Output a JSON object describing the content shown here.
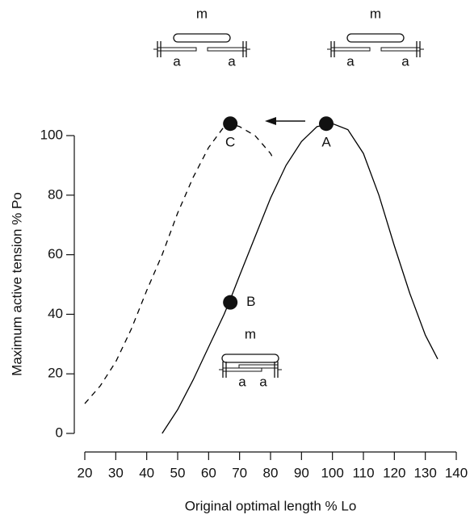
{
  "chart_data": {
    "type": "line",
    "xlabel": "Original optimal length % Lo",
    "ylabel": "Maximum active tension % Po",
    "xlim": [
      20,
      140
    ],
    "xticks": [
      20,
      30,
      40,
      50,
      60,
      70,
      80,
      90,
      100,
      110,
      120,
      130,
      140
    ],
    "ylim": [
      0,
      100
    ],
    "yticks": [
      0,
      20,
      40,
      60,
      80,
      100
    ],
    "series": [
      {
        "color": "#000000",
        "dashed": false,
        "x": [
          45,
          50,
          55,
          60,
          65,
          67,
          70,
          75,
          80,
          85,
          90,
          95,
          100,
          105,
          110,
          115,
          120,
          125,
          130,
          134
        ],
        "values": [
          0,
          8,
          18,
          29,
          40,
          45,
          53,
          66,
          79,
          90,
          98,
          103,
          104,
          102,
          94,
          80,
          63,
          47,
          33,
          25
        ]
      },
      {
        "color": "#000000",
        "dashed": true,
        "x": [
          20,
          25,
          30,
          35,
          40,
          45,
          50,
          55,
          60,
          65,
          67,
          70,
          75,
          80,
          81
        ],
        "values": [
          10,
          16,
          24,
          35,
          48,
          60,
          74,
          86,
          96,
          103,
          104,
          103,
          100,
          94,
          92
        ]
      }
    ],
    "points": [
      {
        "label": "A",
        "x": 98,
        "y": 104
      },
      {
        "label": "B",
        "x": 67,
        "y": 44
      },
      {
        "label": "C",
        "x": 67,
        "y": 104
      }
    ],
    "diagrams": [
      {
        "myosin": "m",
        "actin": [
          "a",
          "a"
        ]
      },
      {
        "myosin": "m",
        "actin": [
          "a",
          "a"
        ]
      },
      {
        "myosin": "m",
        "actin": [
          "a",
          "a"
        ]
      }
    ]
  }
}
